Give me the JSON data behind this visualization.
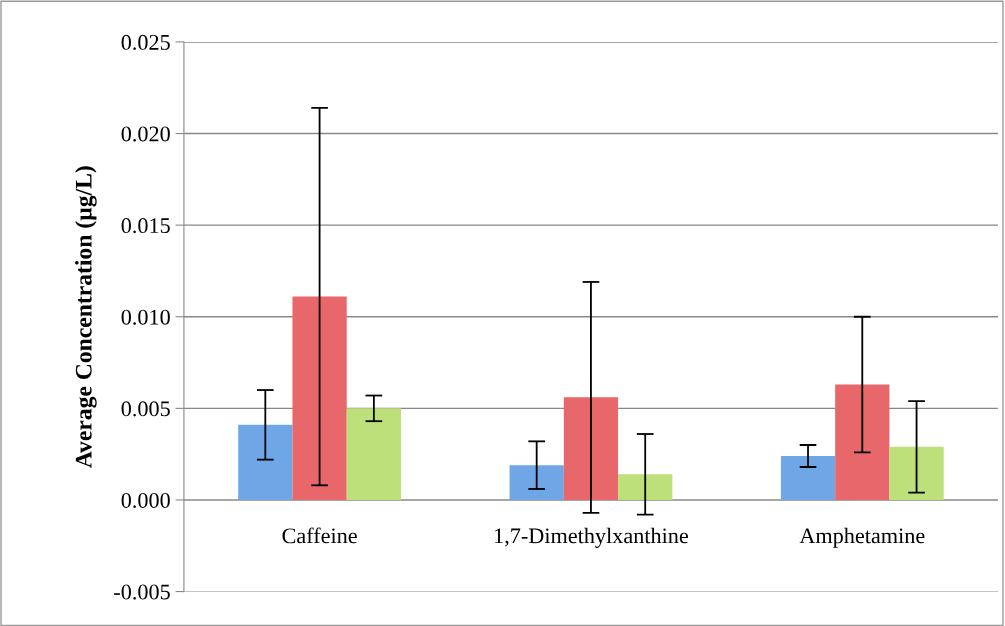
{
  "chart_data": {
    "type": "bar",
    "ylabel": "Average Concentration (µg/L)",
    "categories": [
      "Caffeine",
      "1,7-Dimethylxanthine",
      "Amphetamine"
    ],
    "series": [
      {
        "color": "#6fa6e6",
        "values": [
          0.0041,
          0.0019,
          0.0024
        ],
        "errors": [
          0.0019,
          0.0013,
          0.0006
        ]
      },
      {
        "color": "#e8676a",
        "values": [
          0.0111,
          0.0056,
          0.0063
        ],
        "errors": [
          0.0103,
          0.0063,
          0.0037
        ]
      },
      {
        "color": "#bde07a",
        "values": [
          0.005,
          0.0014,
          0.0029
        ],
        "errors": [
          0.0007,
          0.0022,
          0.0025
        ]
      }
    ],
    "ylim": [
      -0.005,
      0.025
    ],
    "yticks": [
      {
        "value": -0.005,
        "label": "-0.005"
      },
      {
        "value": 0,
        "label": "0.000"
      },
      {
        "value": 0.005,
        "label": "0.005"
      },
      {
        "value": 0.01,
        "label": "0.010"
      },
      {
        "value": 0.015,
        "label": "0.015"
      },
      {
        "value": 0.02,
        "label": "0.020"
      },
      {
        "value": 0.025,
        "label": "0.025"
      }
    ],
    "grid": "y",
    "legend": false
  }
}
